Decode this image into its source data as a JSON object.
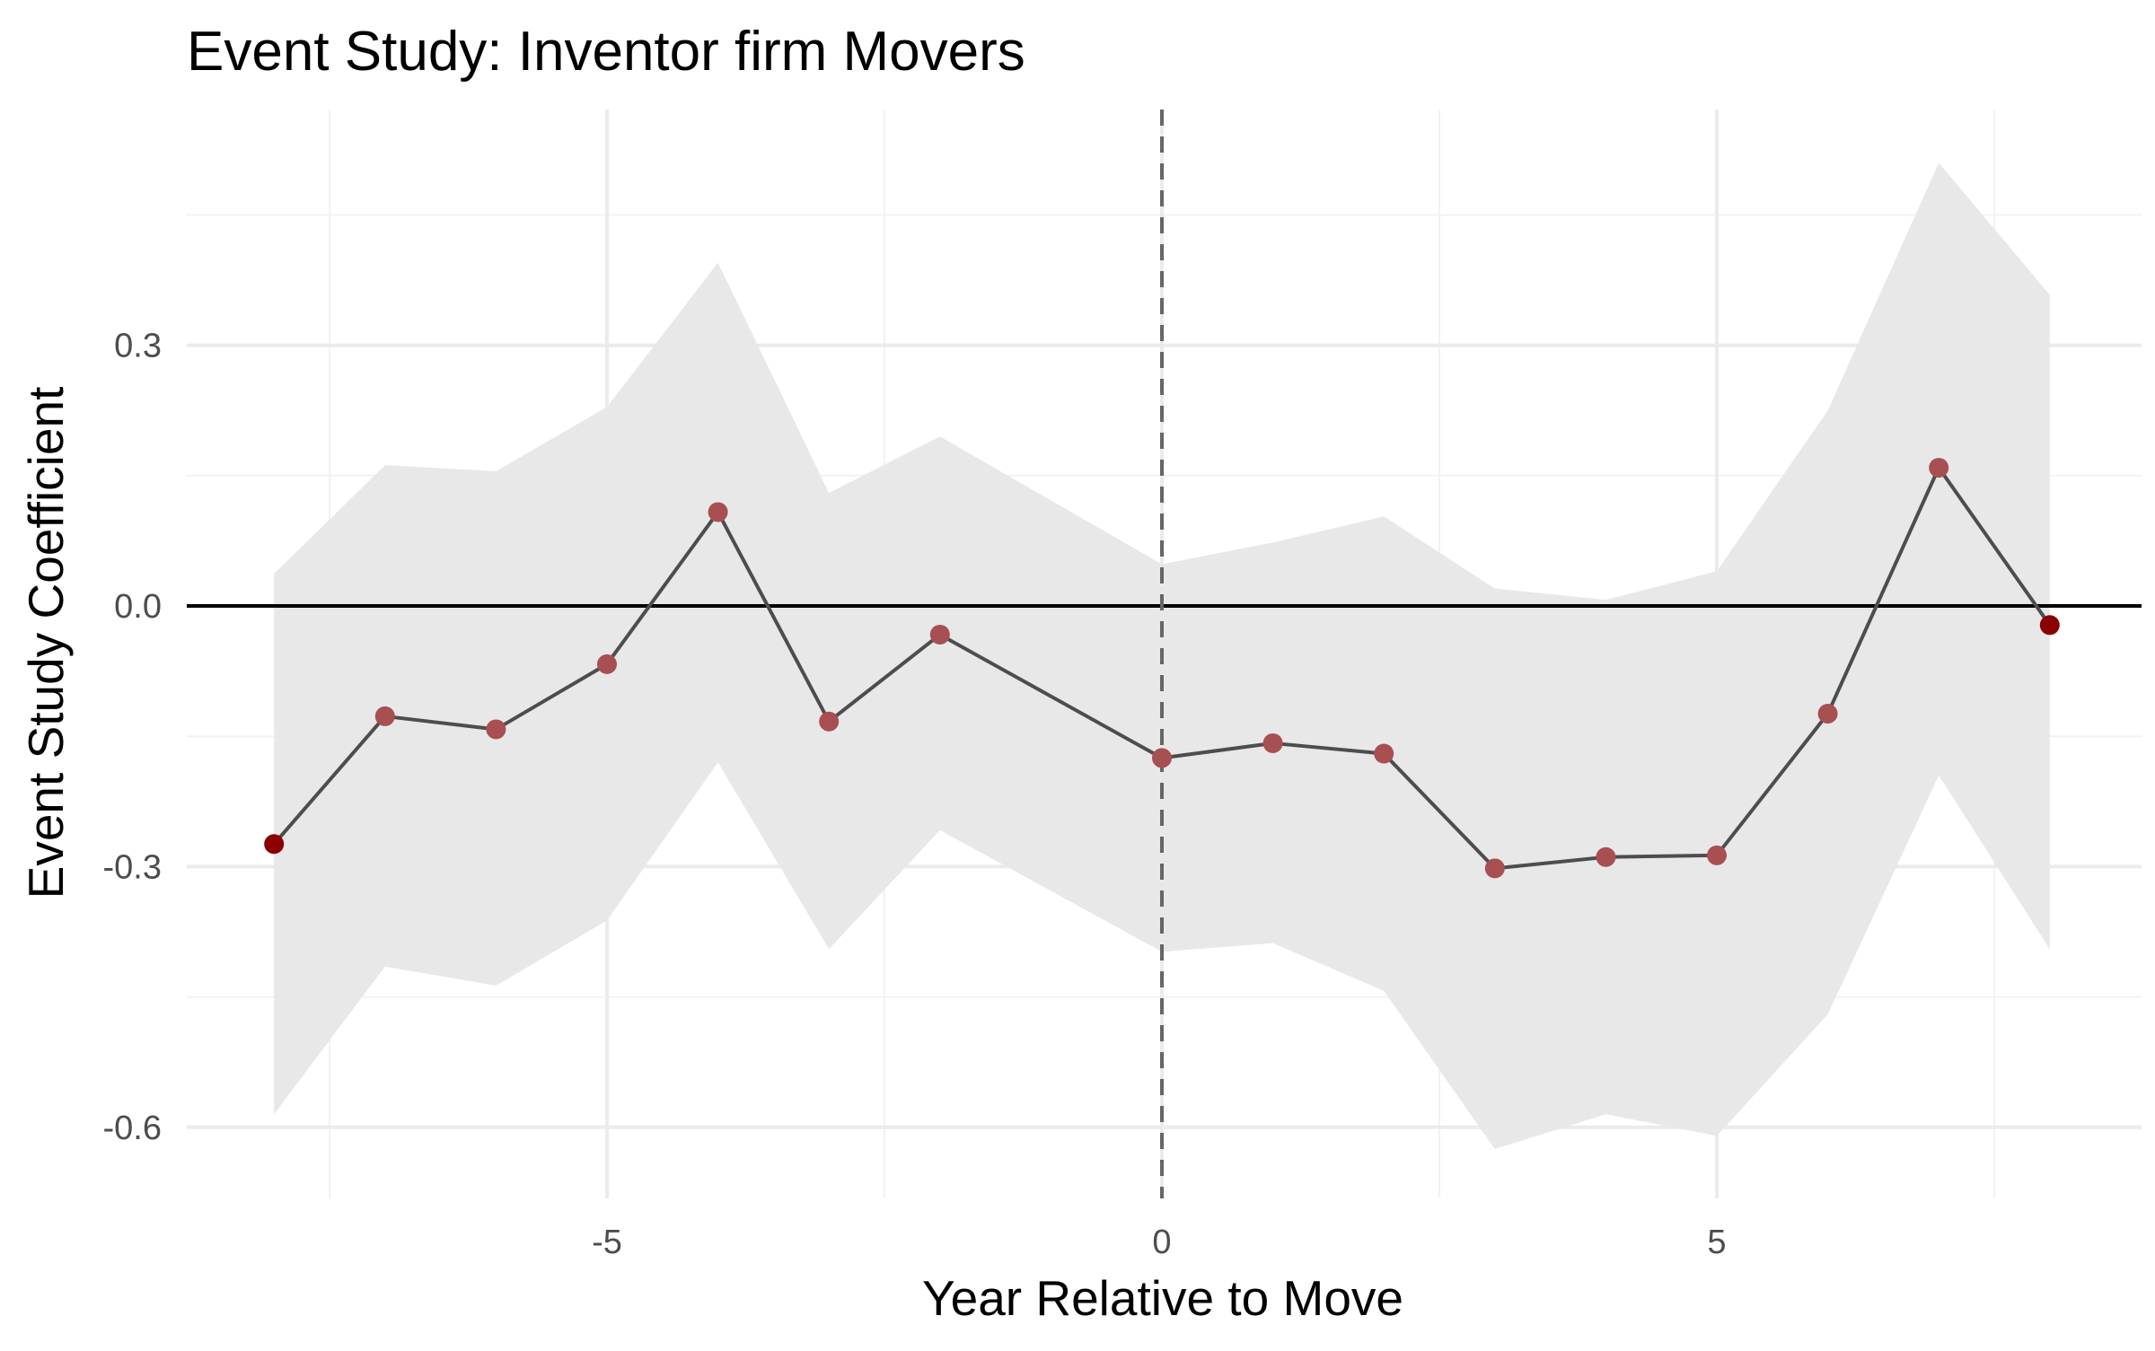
{
  "chart_data": {
    "type": "line",
    "title": "Event Study: Inventor firm Movers",
    "xlabel": "Year Relative to Move",
    "ylabel": "Event Study Coefficient",
    "xlim": [
      -8.5,
      8.8
    ],
    "ylim": [
      -0.68,
      0.56
    ],
    "x_ticks": [
      -5,
      0,
      5
    ],
    "x_tick_labels": [
      "-5",
      "0",
      "5"
    ],
    "x_minor_gridlines": [
      -7.5,
      -2.5,
      2.5,
      7.5
    ],
    "y_ticks": [
      -0.6,
      -0.3,
      0.0,
      0.3
    ],
    "y_tick_labels": [
      "-0.6",
      "-0.3",
      "0.0",
      "0.3"
    ],
    "y_minor_gridlines": [
      -0.45,
      -0.15,
      0.15,
      0.45
    ],
    "grid": true,
    "legend": "none",
    "reference_lines": {
      "horizontal_y": 0.0,
      "vertical_x": 0,
      "vertical_style": "dashed"
    },
    "series": [
      {
        "x": [
          -8,
          -7,
          -6,
          -5,
          -4,
          -3,
          -2,
          0,
          1,
          2,
          3,
          4,
          5,
          6,
          7,
          8
        ],
        "y": [
          -0.274,
          -0.127,
          -0.142,
          -0.067,
          0.108,
          -0.133,
          -0.033,
          -0.175,
          -0.158,
          -0.17,
          -0.302,
          -0.289,
          -0.287,
          -0.124,
          0.159,
          -0.022
        ],
        "ci_lower": [
          -0.585,
          -0.415,
          -0.437,
          -0.362,
          -0.18,
          -0.395,
          -0.258,
          -0.398,
          -0.388,
          -0.443,
          -0.625,
          -0.585,
          -0.61,
          -0.47,
          -0.195,
          -0.395
        ],
        "ci_upper": [
          0.037,
          0.162,
          0.155,
          0.229,
          0.395,
          0.13,
          0.195,
          0.048,
          0.073,
          0.103,
          0.02,
          0.007,
          0.04,
          0.225,
          0.51,
          0.358
        ],
        "line_color": "#4d4d4d",
        "point_color": "#a84f52",
        "endpoint_color": "#8b0000",
        "ci_fill": "#e8e8e8"
      }
    ]
  },
  "colors": {
    "background": "#ffffff",
    "grid_major": "#ebebeb",
    "grid_minor": "#f2f2f2",
    "zero_line": "#000000",
    "vline": "#666666",
    "tick_text": "#4d4d4d"
  }
}
